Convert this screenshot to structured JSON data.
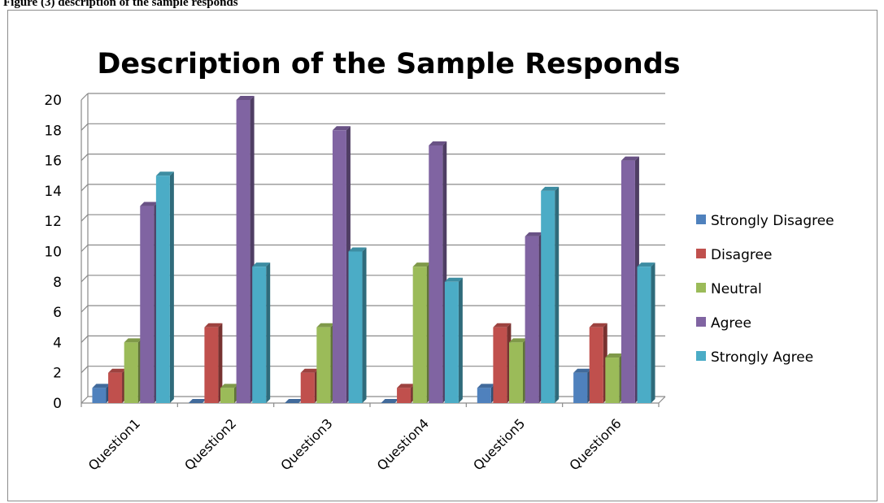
{
  "caption": "Figure (3) description of the sample responds",
  "chart_data": {
    "type": "bar",
    "title": "Description of the Sample Responds",
    "xlabel": "",
    "ylabel": "",
    "categories": [
      "Question1",
      "Question2",
      "Question3",
      "Question4",
      "Question5",
      "Question6"
    ],
    "series": [
      {
        "name": "Strongly Disagree",
        "color": "#4f81bd",
        "values": [
          1,
          0,
          0,
          0,
          1,
          2
        ]
      },
      {
        "name": "Disagree",
        "color": "#c0504d",
        "values": [
          2,
          5,
          2,
          1,
          5,
          5
        ]
      },
      {
        "name": "Neutral",
        "color": "#9bbb59",
        "values": [
          4,
          1,
          5,
          9,
          4,
          3
        ]
      },
      {
        "name": "Agree",
        "color": "#8064a2",
        "values": [
          13,
          20,
          18,
          17,
          11,
          16
        ]
      },
      {
        "name": "Strongly Agree",
        "color": "#4bacc6",
        "values": [
          15,
          9,
          10,
          8,
          14,
          9
        ]
      }
    ],
    "ylim": [
      0,
      20
    ],
    "yticks": [
      0,
      2,
      4,
      6,
      8,
      10,
      12,
      14,
      16,
      18,
      20
    ],
    "grid": true,
    "legend": "right",
    "style": "3d-clustered-column"
  }
}
